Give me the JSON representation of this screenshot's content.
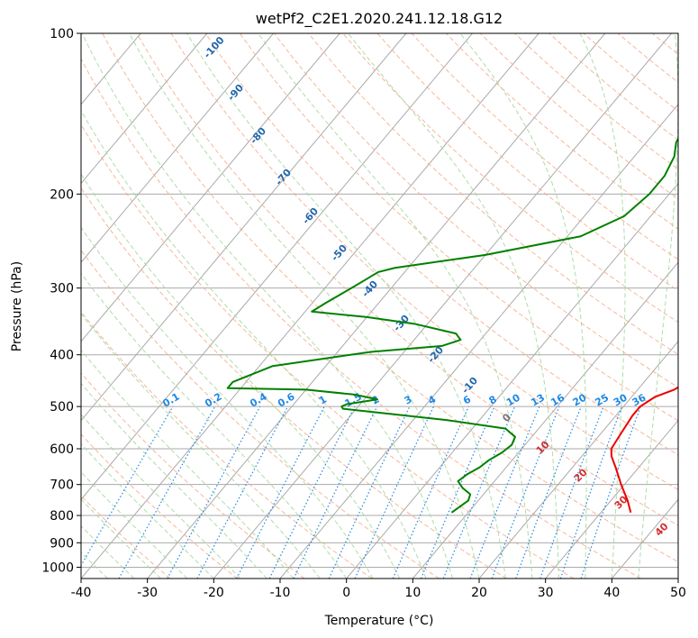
{
  "chart_data": {
    "type": "line",
    "title": "wetPf2_C2E1.2020.241.12.18.G12",
    "xlabel": "Temperature (°C)",
    "ylabel": "Pressure (hPa)",
    "xlim": [
      -40,
      50
    ],
    "ylim": [
      1050,
      100
    ],
    "y_scale": "log",
    "x_ticks": [
      -40,
      -30,
      -20,
      -10,
      0,
      10,
      20,
      30,
      40,
      50
    ],
    "y_ticks": [
      1000,
      900,
      800,
      700,
      600,
      500,
      400,
      300,
      200,
      100
    ],
    "grid": true,
    "colors": {
      "temperature": "#ee0000",
      "dewpoint": "#008000",
      "isotherm": "#aaaaaa",
      "dry_adiabat": "#f4a582",
      "moist_adiabat": "#a6d8a0",
      "mixing_ratio": "#1e88e5",
      "dry_label": "#2166ac",
      "moist_label": "#d32f2f",
      "zero_label": "#777777"
    },
    "series": [
      {
        "key": "temperature",
        "pressure": [
          790,
          750,
          700,
          650,
          620,
          600,
          560,
          520,
          500,
          480,
          465,
          450,
          440,
          420,
          400,
          380,
          360,
          340,
          320,
          300,
          280,
          260,
          240,
          220,
          200,
          180,
          160,
          140,
          125,
          115,
          108,
          100
        ],
        "temperature": [
          34.5,
          32.5,
          29.5,
          26.5,
          24.5,
          23.5,
          23.0,
          22.5,
          22.5,
          23.5,
          25.5,
          26.5,
          27.0,
          26.0,
          25.0,
          23.5,
          22.0,
          21.0,
          20.0,
          18.5,
          16.5,
          14.0,
          11.0,
          8.0,
          5.0,
          2.0,
          -1.0,
          -4.0,
          -6.5,
          -7.5,
          -7.5,
          -7.5
        ]
      },
      {
        "key": "dewpoint",
        "pressure": [
          790,
          770,
          750,
          730,
          710,
          690,
          670,
          650,
          630,
          610,
          590,
          570,
          550,
          530,
          515,
          505,
          500,
          495,
          485,
          475,
          465,
          462,
          450,
          420,
          395,
          385,
          375,
          365,
          350,
          340,
          332,
          320,
          300,
          290,
          280,
          275,
          260,
          240,
          220,
          200,
          185,
          170,
          160,
          150,
          140,
          130,
          120,
          110,
          100
        ],
        "temperature": [
          7.5,
          8.0,
          8.5,
          8.0,
          6.0,
          4.5,
          5.0,
          6.0,
          6.5,
          7.5,
          8.0,
          7.5,
          5.0,
          -5.0,
          -15.0,
          -22.0,
          -22.5,
          -22.0,
          -18.0,
          -22.0,
          -30.0,
          -42.0,
          -42.0,
          -38.0,
          -25.0,
          -15.0,
          -13.0,
          -14.5,
          -22.0,
          -30.0,
          -39.0,
          -38.0,
          -36.0,
          -35.0,
          -34.0,
          -32.0,
          -20.0,
          -8.0,
          -4.0,
          -3.0,
          -3.0,
          -4.0,
          -5.5,
          -6.0,
          -5.5,
          -5.0,
          -4.0,
          -2.0,
          0.0
        ]
      }
    ],
    "dry_adiabat_labels": [
      "-100",
      "-90",
      "-80",
      "-70",
      "-60",
      "-50",
      "-40",
      "-30",
      "-20",
      "-10"
    ],
    "mixing_ratio_labels": [
      "0.1",
      "0.2",
      "0.4",
      "0.6",
      "1",
      "1.5",
      "2",
      "3",
      "4",
      "6",
      "8",
      "10",
      "13",
      "16",
      "20",
      "25",
      "30",
      "36"
    ],
    "moist_adiabat_labels": [
      "0",
      "10",
      "20",
      "30",
      "40"
    ]
  }
}
